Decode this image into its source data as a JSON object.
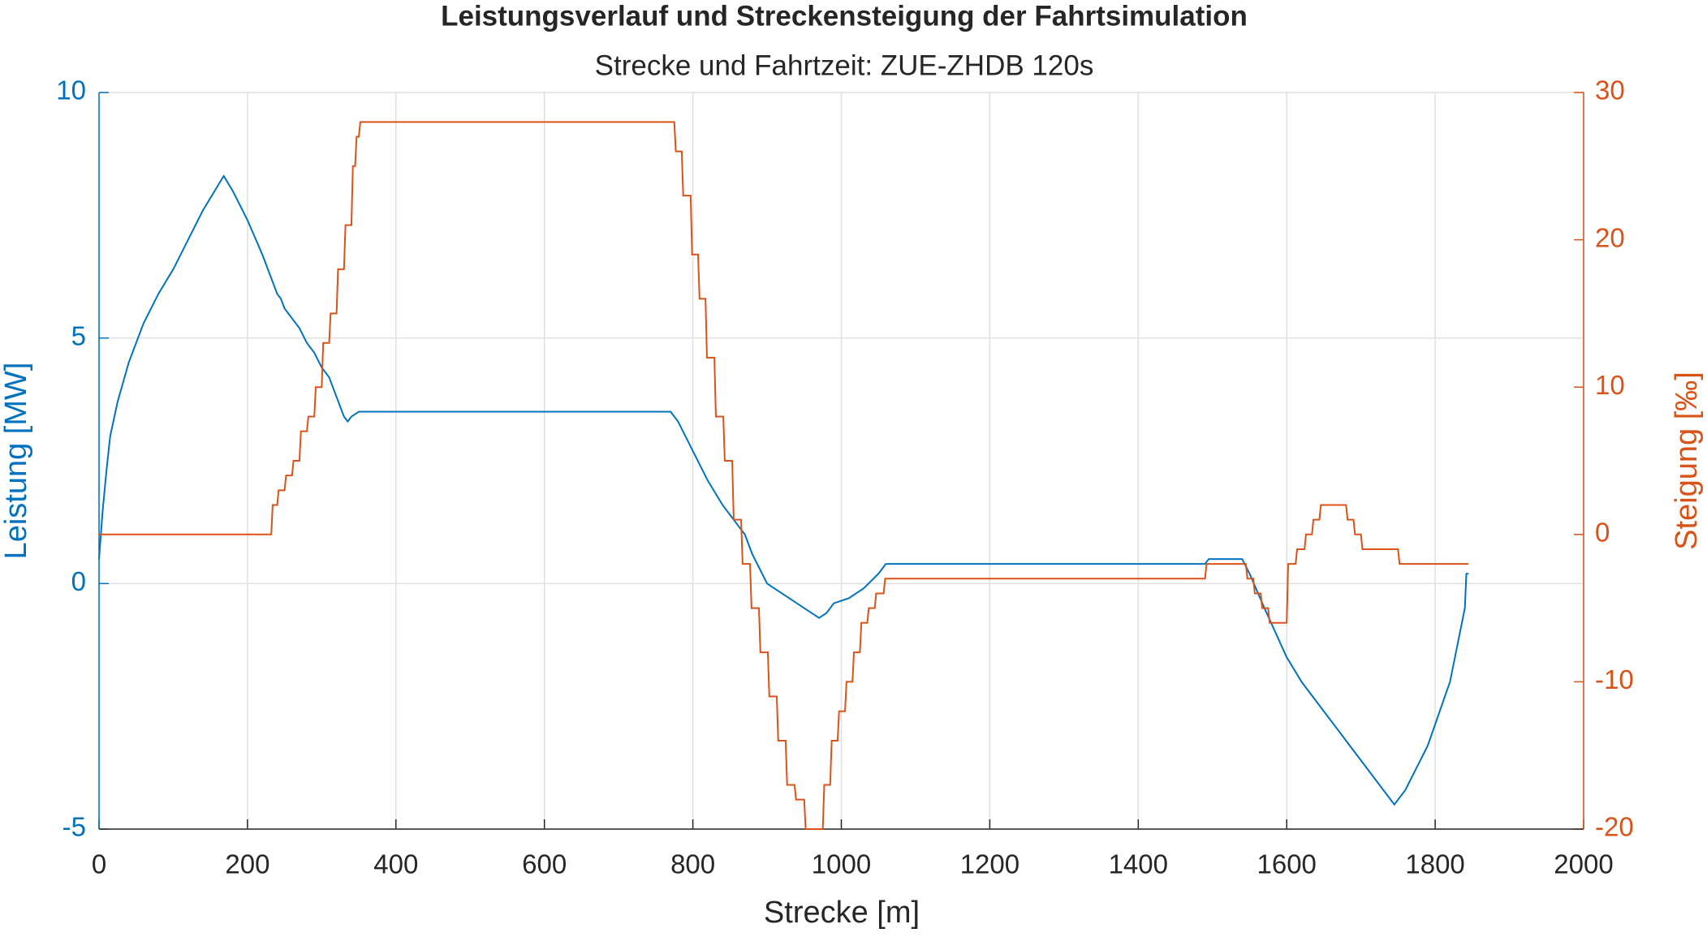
{
  "chart_data": {
    "type": "line",
    "title": "Leistungsverlauf und Streckensteigung der Fahrtsimulation",
    "subtitle": "Strecke und Fahrtzeit: ZUE-ZHDB 120s",
    "x_label": "Strecke [m]",
    "y_label": "Leistung [MW]",
    "y2_label": "Steigung [‰]",
    "xlim": [
      0,
      2000
    ],
    "xticks": [
      0,
      200,
      400,
      600,
      800,
      1000,
      1200,
      1400,
      1600,
      1800,
      2000
    ],
    "ylim": [
      -5,
      10
    ],
    "yticks": [
      -5,
      0,
      5,
      10
    ],
    "y2lim": [
      -20,
      30
    ],
    "y2ticks": [
      -20,
      -10,
      0,
      10,
      20,
      30
    ],
    "grid": true,
    "y_color": "#0072bd",
    "y2_color": "#d95319",
    "series": [
      {
        "color": "#0072bd",
        "x": [
          0,
          5,
          10,
          15,
          25,
          40,
          60,
          80,
          100,
          120,
          140,
          160,
          168,
          180,
          200,
          220,
          240,
          245,
          250,
          260,
          270,
          280,
          290,
          300,
          310,
          320,
          330,
          335,
          340,
          350,
          360,
          770,
          780,
          790,
          800,
          820,
          840,
          860,
          870,
          880,
          900,
          920,
          940,
          960,
          970,
          980,
          990,
          1010,
          1030,
          1050,
          1060,
          1070,
          1490,
          1495,
          1540,
          1550,
          1570,
          1600,
          1620,
          1650,
          1700,
          1720,
          1745,
          1760,
          1790,
          1820,
          1840,
          1842,
          1845
        ],
        "values": [
          0.5,
          1.5,
          2.3,
          3,
          3.7,
          4.5,
          5.3,
          5.9,
          6.4,
          7,
          7.6,
          8.1,
          8.3,
          8,
          7.4,
          6.7,
          5.9,
          5.8,
          5.6,
          5.4,
          5.2,
          4.9,
          4.7,
          4.4,
          4.2,
          3.8,
          3.4,
          3.3,
          3.4,
          3.5,
          3.5,
          3.5,
          3.3,
          3,
          2.7,
          2.1,
          1.6,
          1.2,
          1,
          0.6,
          0,
          -0.2,
          -0.4,
          -0.6,
          -0.7,
          -0.6,
          -0.4,
          -0.3,
          -0.1,
          0.2,
          0.4,
          0.4,
          0.4,
          0.5,
          0.5,
          0.2,
          -0.5,
          -1.5,
          -2,
          -2.6,
          -3.6,
          -4,
          -4.5,
          -4.2,
          -3.3,
          -2,
          -0.5,
          0.2,
          0.2
        ]
      },
      {
        "color": "#d95319",
        "axis": "y2",
        "x": [
          0,
          232,
          234,
          240,
          242,
          250,
          252,
          260,
          262,
          270,
          272,
          280,
          282,
          290,
          292,
          300,
          302,
          310,
          312,
          320,
          322,
          330,
          332,
          340,
          342,
          345,
          347,
          350,
          352,
          360,
          775,
          777,
          785,
          787,
          797,
          799,
          807,
          809,
          817,
          819,
          829,
          831,
          841,
          843,
          853,
          855,
          865,
          867,
          877,
          879,
          889,
          891,
          901,
          903,
          913,
          915,
          925,
          927,
          937,
          939,
          950,
          952,
          975,
          977,
          985,
          987,
          995,
          997,
          1005,
          1007,
          1015,
          1017,
          1025,
          1027,
          1035,
          1037,
          1045,
          1047,
          1057,
          1059,
          1490,
          1492,
          1545,
          1547,
          1555,
          1557,
          1565,
          1567,
          1575,
          1577,
          1600,
          1602,
          1612,
          1614,
          1624,
          1626,
          1634,
          1636,
          1644,
          1646,
          1680,
          1682,
          1690,
          1692,
          1700,
          1702,
          1750,
          1752,
          1845
        ],
        "values": [
          0,
          0,
          2,
          2,
          3,
          3,
          4,
          4,
          5,
          5,
          7,
          7,
          8,
          8,
          10,
          10,
          13,
          13,
          15,
          15,
          18,
          18,
          21,
          21,
          25,
          25,
          27,
          27,
          28,
          28,
          28,
          26,
          26,
          23,
          23,
          19,
          19,
          16,
          16,
          12,
          12,
          8,
          8,
          5,
          5,
          1,
          1,
          -2,
          -2,
          -5,
          -5,
          -8,
          -8,
          -11,
          -11,
          -14,
          -14,
          -17,
          -17,
          -18,
          -18,
          -20,
          -20,
          -17,
          -17,
          -14,
          -14,
          -12,
          -12,
          -10,
          -10,
          -8,
          -8,
          -6,
          -6,
          -5,
          -5,
          -4,
          -4,
          -3,
          -3,
          -2,
          -2,
          -3,
          -3,
          -4,
          -4,
          -5,
          -5,
          -6,
          -6,
          -2,
          -2,
          -1,
          -1,
          0,
          0,
          1,
          1,
          2,
          2,
          1,
          1,
          0,
          0,
          -1,
          -1,
          -2,
          -2
        ]
      }
    ]
  }
}
